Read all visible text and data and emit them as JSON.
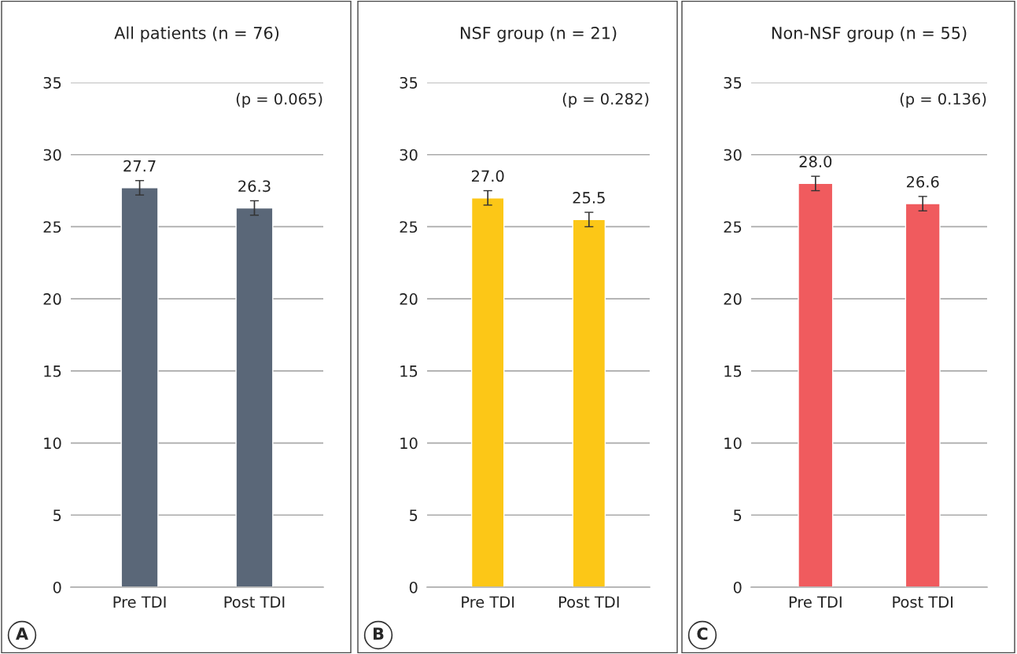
{
  "chart_data": [
    {
      "type": "bar",
      "title": "All patients (n = 76)",
      "categories": [
        "Pre TDI",
        "Post TDI"
      ],
      "values": [
        27.7,
        26.3
      ],
      "value_labels": [
        "27.7",
        "26.3"
      ],
      "errors": [
        0.5,
        0.5
      ],
      "color": "#5a6778",
      "ylim": [
        0,
        35
      ],
      "yticks": [
        0,
        5,
        10,
        15,
        20,
        25,
        30,
        35
      ],
      "grid": "y",
      "annotations": [
        "(p = 0.065)",
        "A"
      ]
    },
    {
      "type": "bar",
      "title": "NSF group (n = 21)",
      "categories": [
        "Pre TDI",
        "Post TDI"
      ],
      "values": [
        27.0,
        25.5
      ],
      "value_labels": [
        "27.0",
        "25.5"
      ],
      "errors": [
        0.5,
        0.5
      ],
      "color": "#fcc717",
      "ylim": [
        0,
        35
      ],
      "yticks": [
        0,
        5,
        10,
        15,
        20,
        25,
        30,
        35
      ],
      "grid": "y",
      "annotations": [
        "(p = 0.282)",
        "B"
      ]
    },
    {
      "type": "bar",
      "title": "Non-NSF group (n = 55)",
      "categories": [
        "Pre TDI",
        "Post TDI"
      ],
      "values": [
        28.0,
        26.6
      ],
      "value_labels": [
        "28.0",
        "26.6"
      ],
      "errors": [
        0.5,
        0.5
      ],
      "color": "#f05b5e",
      "ylim": [
        0,
        35
      ],
      "yticks": [
        0,
        5,
        10,
        15,
        20,
        25,
        30,
        35
      ],
      "grid": "y",
      "annotations": [
        "(p = 0.136)",
        "C"
      ]
    }
  ]
}
